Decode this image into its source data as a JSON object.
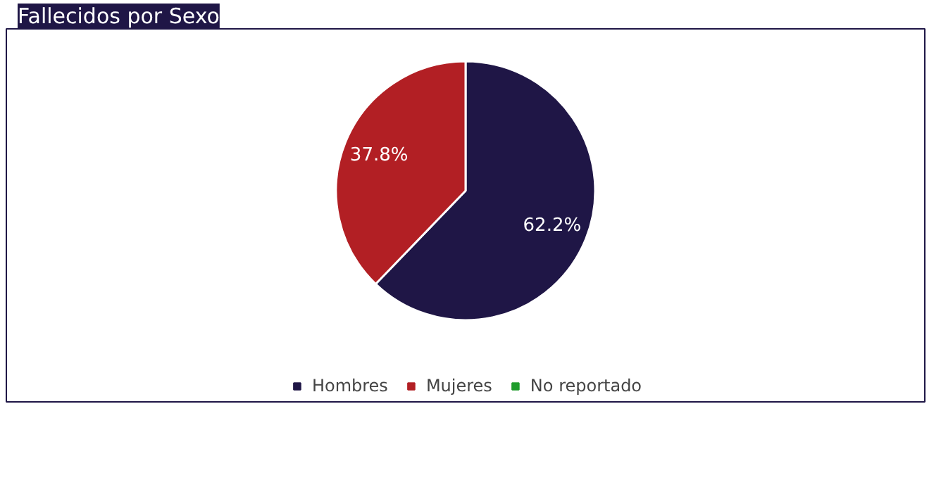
{
  "chart_data": {
    "type": "pie",
    "title": "Fallecidos por Sexo",
    "categories": [
      "Hombres",
      "Mujeres",
      "No reportado"
    ],
    "values": [
      62.2,
      37.8,
      0
    ],
    "colors": [
      "#1f1646",
      "#b21f24",
      "#1f9c2c"
    ],
    "value_labels": [
      "62.2%",
      "37.8%",
      null
    ],
    "legend": "bottom"
  }
}
